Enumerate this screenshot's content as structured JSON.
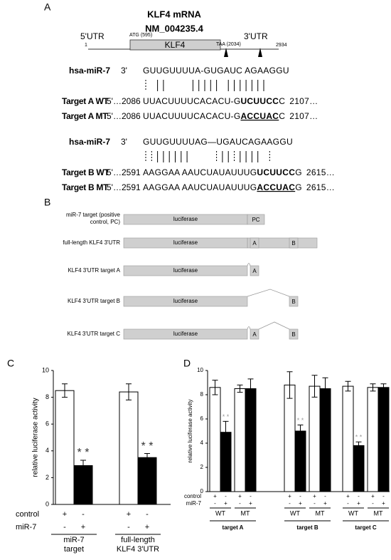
{
  "panel_a": {
    "label": "A",
    "title": "KLF4 mRNA",
    "accession": "NM_004235.4",
    "utr5": "5'UTR",
    "utr3": "3'UTR",
    "start": "1",
    "end": "2934",
    "atg": "ATG (595)",
    "taa": "TAA (2034)",
    "cds": "KLF4",
    "alignments": [
      {
        "mirna": {
          "name": "hsa-miR-7",
          "end": "3'",
          "seq": "GUUGUUUUA-GUGAUC AGAAGGU"
        },
        "targets": [
          {
            "label": "Target A WT",
            "start": "5'…2086",
            "seq": "UUACUUUUCACACU-G",
            "site": "UCUUCC",
            "tail": "C",
            "end": "2107…",
            "mutant": false
          },
          {
            "label": "Target A MT",
            "start": "5'…2086",
            "seq": "UUACUUUUCACACU-G",
            "site": "ACCUAC",
            "tail": "C",
            "end": "2107…",
            "mutant": true
          }
        ]
      },
      {
        "mirna": {
          "name": "hsa-miR-7",
          "end": "3'",
          "seq": "GUUGUUUUAG—UGAUCAGAAGGU"
        },
        "targets": [
          {
            "label": "Target B WT",
            "start": "5'…2591",
            "seq": "AAGGAA AAUCUAUAUUUG",
            "site": "UCUUCC",
            "tail": "G",
            "end": "2615…",
            "mutant": false
          },
          {
            "label": "Target B MT",
            "start": "5'…2591",
            "seq": "AAGGAA AAUCUAUAUUUG",
            "site": "ACCUAC",
            "tail": "G",
            "end": "2615…",
            "mutant": true
          }
        ]
      }
    ]
  },
  "panel_b": {
    "label": "B",
    "reporter": "luciferase",
    "constructs": [
      {
        "name": "miR-7 target (positive control, PC)",
        "sites": [
          "PC"
        ]
      },
      {
        "name": "full-length KLF4 3'UTR",
        "sites": [
          "A",
          "B"
        ]
      },
      {
        "name": "KLF4 3'UTR target A",
        "sites": [
          "A"
        ]
      },
      {
        "name": "KLF4 3'UTR target B",
        "sites": [
          "B"
        ]
      },
      {
        "name": "KLF4 3'UTR target C",
        "sites": [
          "A",
          "B"
        ]
      }
    ]
  },
  "chart_data": [
    {
      "type": "bar",
      "panel": "C",
      "ylabel": "relative luciferase activity",
      "categories": [
        "miR-7 target",
        "full-length KLF4 3'UTR"
      ],
      "series": [
        {
          "color": "#ffffff",
          "values": [
            8.5,
            8.4
          ],
          "errors": [
            0.5,
            0.6
          ]
        },
        {
          "color": "#000000",
          "values": [
            2.9,
            3.5
          ],
          "errors": [
            0.4,
            0.3
          ],
          "annotation": "* *",
          "annotation_color": "#333333"
        }
      ],
      "ylim": [
        0,
        10
      ],
      "yticks": [
        0,
        2,
        4,
        6,
        8,
        10
      ],
      "treatment_rows": [
        {
          "label": "control",
          "signs": [
            "+",
            "-"
          ]
        },
        {
          "label": "miR-7",
          "signs": [
            "-",
            "+"
          ]
        }
      ]
    },
    {
      "type": "bar",
      "panel": "D",
      "ylabel": "relative luciferase activity",
      "categories": [
        "target A",
        "target B",
        "target C"
      ],
      "subgroups": [
        "WT",
        "MT"
      ],
      "series": [
        {
          "color": "#ffffff",
          "values": [
            8.6,
            8.8,
            8.7
          ],
          "errors": [
            0.6,
            1.1,
            0.4
          ]
        },
        {
          "color": "#000000",
          "values": [
            4.9,
            5.0,
            3.8
          ],
          "errors": [
            0.9,
            0.5,
            0.3
          ],
          "annotation": "* *",
          "annotation_color": "#999999"
        },
        {
          "color": "#ffffff",
          "values": [
            8.5,
            8.7,
            8.6
          ],
          "errors": [
            0.3,
            0.9,
            0.3
          ]
        },
        {
          "color": "#000000",
          "values": [
            8.5,
            8.5,
            8.6
          ],
          "errors": [
            0.8,
            0.9,
            0.3
          ]
        }
      ],
      "ylim": [
        0,
        10
      ],
      "yticks": [
        0,
        2,
        4,
        6,
        8,
        10
      ],
      "treatment_rows": [
        {
          "label": "control",
          "signs": [
            "+",
            "-",
            "+",
            "-"
          ]
        },
        {
          "label": "miR-7",
          "signs": [
            "-",
            "+",
            "-",
            "+"
          ]
        }
      ]
    }
  ]
}
